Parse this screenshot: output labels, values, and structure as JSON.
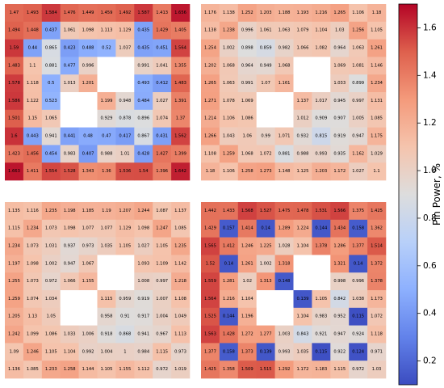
{
  "chart_data": {
    "type": "heatmap",
    "colorbar": {
      "label": "Pin Power, %",
      "range": [
        0.1,
        1.7
      ],
      "ticks": [
        0.2,
        0.4,
        0.6,
        0.8,
        1.0,
        1.2,
        1.4,
        1.6
      ],
      "tick_labels": [
        "0.2",
        "0.4",
        "0.6",
        "0.8",
        "1.0",
        "1.2",
        "1.4",
        "1.6"
      ],
      "colormap": "coolwarm"
    },
    "panels": [
      {
        "position": "top-left",
        "rows": [
          [
            1.47,
            1.493,
            1.584,
            1.476,
            1.449,
            1.459,
            1.492,
            1.587,
            1.413,
            1.656
          ],
          [
            1.494,
            1.448,
            0.437,
            1.061,
            1.098,
            1.113,
            1.129,
            0.435,
            1.429,
            1.405
          ],
          [
            1.59,
            0.44,
            0.865,
            0.423,
            0.488,
            0.52,
            1.037,
            0.435,
            0.451,
            1.564
          ],
          [
            1.483,
            1.1,
            0.881,
            0.477,
            0.996,
            null,
            null,
            0.991,
            1.041,
            1.355
          ],
          [
            1.578,
            1.118,
            0.5,
            1.013,
            1.201,
            null,
            null,
            0.493,
            0.412,
            1.483
          ],
          [
            1.586,
            1.122,
            0.523,
            null,
            null,
            1.199,
            0.948,
            0.484,
            1.027,
            1.391
          ],
          [
            1.501,
            1.15,
            1.065,
            null,
            null,
            0.929,
            0.878,
            0.896,
            1.074,
            1.37
          ],
          [
            1.6,
            0.443,
            0.941,
            0.441,
            0.48,
            0.47,
            0.417,
            0.867,
            0.431,
            1.562
          ],
          [
            1.423,
            1.456,
            0.454,
            0.983,
            0.407,
            0.988,
            1.01,
            0.428,
            1.427,
            1.399
          ],
          [
            1.663,
            1.411,
            1.554,
            1.528,
            1.343,
            1.36,
            1.536,
            1.54,
            1.396,
            1.642
          ]
        ]
      },
      {
        "position": "top-right",
        "rows": [
          [
            1.176,
            1.138,
            1.252,
            1.203,
            1.188,
            1.193,
            1.216,
            1.265,
            1.106,
            1.18
          ],
          [
            1.138,
            1.238,
            0.996,
            1.061,
            1.063,
            1.079,
            1.104,
            1.03,
            1.256,
            1.105
          ],
          [
            1.254,
            1.002,
            0.898,
            0.859,
            0.982,
            1.066,
            1.082,
            0.964,
            1.063,
            1.261
          ],
          [
            1.202,
            1.068,
            0.964,
            0.949,
            1.068,
            null,
            null,
            1.069,
            1.081,
            1.146
          ],
          [
            1.265,
            1.063,
            0.991,
            1.07,
            1.161,
            null,
            null,
            1.033,
            0.899,
            1.234
          ],
          [
            1.271,
            1.078,
            1.069,
            null,
            null,
            1.137,
            1.017,
            0.945,
            0.997,
            1.131
          ],
          [
            1.214,
            1.106,
            1.086,
            null,
            null,
            1.012,
            0.909,
            0.907,
            1.005,
            1.085
          ],
          [
            1.266,
            1.043,
            1.06,
            0.99,
            1.071,
            0.932,
            0.815,
            0.919,
            0.947,
            1.175
          ],
          [
            1.108,
            1.259,
            1.068,
            1.072,
            0.881,
            0.988,
            0.993,
            0.935,
            1.162,
            1.029
          ],
          [
            1.18,
            1.106,
            1.258,
            1.273,
            1.148,
            1.125,
            1.203,
            1.172,
            1.027,
            1.1
          ]
        ]
      },
      {
        "position": "bottom-left",
        "rows": [
          [
            1.135,
            1.116,
            1.235,
            1.198,
            1.185,
            1.19,
            1.207,
            1.244,
            1.087,
            1.137
          ],
          [
            1.115,
            1.234,
            1.073,
            1.098,
            1.077,
            1.077,
            1.129,
            1.098,
            1.247,
            1.085
          ],
          [
            1.234,
            1.073,
            1.031,
            0.937,
            0.973,
            1.035,
            1.105,
            1.027,
            1.105,
            1.235
          ],
          [
            1.197,
            1.098,
            1.002,
            0.947,
            1.067,
            null,
            null,
            1.093,
            1.109,
            1.142
          ],
          [
            1.255,
            1.073,
            0.972,
            1.066,
            1.155,
            null,
            null,
            1.008,
            0.997,
            1.218
          ],
          [
            1.259,
            1.074,
            1.034,
            null,
            null,
            1.115,
            0.959,
            0.919,
            1.007,
            1.108
          ],
          [
            1.205,
            1.13,
            1.05,
            null,
            null,
            0.958,
            0.91,
            0.917,
            1.004,
            1.049
          ],
          [
            1.242,
            1.099,
            1.086,
            1.033,
            1.006,
            0.918,
            0.868,
            0.941,
            0.967,
            1.113
          ],
          [
            1.09,
            1.246,
            1.105,
            1.104,
            0.992,
            1.004,
            1.0,
            0.984,
            1.115,
            0.973
          ],
          [
            1.136,
            1.085,
            1.233,
            1.258,
            1.144,
            1.105,
            1.155,
            1.112,
            0.972,
            1.019
          ]
        ]
      },
      {
        "position": "bottom-right",
        "rows": [
          [
            1.442,
            1.433,
            1.568,
            1.527,
            1.475,
            1.478,
            1.531,
            1.566,
            1.375,
            1.425
          ],
          [
            1.429,
            0.157,
            1.414,
            0.14,
            1.289,
            1.224,
            0.144,
            1.434,
            0.158,
            1.362
          ],
          [
            1.565,
            1.412,
            1.246,
            1.225,
            1.028,
            1.104,
            1.378,
            1.286,
            1.377,
            1.514
          ],
          [
            1.52,
            0.14,
            1.261,
            1.002,
            1.318,
            null,
            null,
            1.321,
            0.14,
            1.372
          ],
          [
            1.559,
            1.281,
            1.02,
            1.313,
            0.148,
            null,
            null,
            0.998,
            0.996,
            1.378
          ],
          [
            1.564,
            1.216,
            1.104,
            null,
            null,
            0.139,
            1.105,
            0.842,
            1.038,
            1.173
          ],
          [
            1.525,
            0.144,
            1.196,
            null,
            null,
            1.104,
            0.983,
            0.952,
            0.115,
            1.072
          ],
          [
            1.563,
            1.428,
            1.272,
            1.277,
            1.003,
            0.843,
            0.921,
            0.947,
            0.924,
            1.118
          ],
          [
            1.377,
            0.158,
            1.373,
            0.139,
            0.993,
            1.035,
            0.115,
            0.922,
            0.124,
            0.971
          ],
          [
            1.425,
            1.358,
            1.509,
            1.515,
            1.292,
            1.172,
            1.183,
            1.115,
            0.972,
            1.03
          ]
        ]
      }
    ]
  }
}
